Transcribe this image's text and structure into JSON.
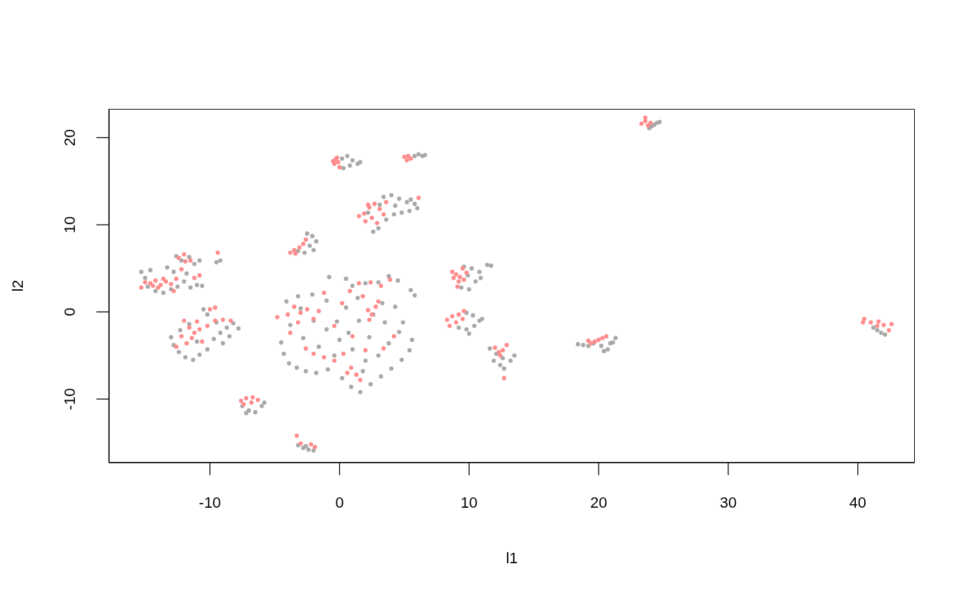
{
  "chart_data": {
    "type": "scatter",
    "xlabel": "l1",
    "ylabel": "l2",
    "xlim": [
      -17.8,
      44.4
    ],
    "ylim": [
      -17.3,
      23.3
    ],
    "xticks": [
      -10,
      0,
      10,
      20,
      30,
      40
    ],
    "yticks": [
      -10,
      0,
      10,
      20
    ],
    "marker": "circle",
    "series": [
      {
        "color": "#a8a8a8",
        "x": [
          -15.3,
          -15.0,
          -14.6,
          -14.2,
          -13.6,
          -13.0,
          -12.5,
          -12.0,
          -11.5,
          -11.0,
          -12.8,
          -13.3,
          -12.2,
          -11.6,
          -11.2,
          -10.8,
          -12.6,
          -14.8,
          -11.8,
          -10.6,
          -9.5,
          -9.2,
          -12.8,
          -12.4,
          -11.9,
          -11.3,
          -10.8,
          -10.2,
          -9.7,
          -9.2,
          -8.7,
          -8.2,
          -7.8,
          -9.5,
          -10.5,
          -10.2,
          -11.6,
          -12.3,
          -13.0,
          -9.0,
          -11.0,
          -8.5,
          -7.5,
          -7.0,
          -6.5,
          -6.0,
          -5.8,
          -7.2,
          -3.2,
          -2.8,
          -2.4,
          -2.0,
          -2.6,
          -2.5,
          -2.1,
          -1.8,
          -2.3,
          -2.0,
          -2.7,
          -3.2,
          -4.5,
          -4.3,
          -3.9,
          -3.3,
          -2.6,
          -1.8,
          -0.9,
          0.2,
          0.9,
          1.6,
          2.4,
          3.2,
          4.0,
          4.8,
          5.4,
          5.6,
          4.6,
          3.8,
          3.0,
          2.0,
          1.0,
          0.0,
          -1.0,
          -2.0,
          -3.0,
          -3.8,
          -4.1,
          -3.2,
          -2.1,
          -1.0,
          0.5,
          1.5,
          3.5,
          4.3,
          3.3,
          1.4,
          0.7,
          -0.4,
          -1.6,
          -2.8,
          2.3,
          4.9,
          5.8,
          5.5,
          4.5,
          3.8,
          3.0,
          2.0,
          1.0,
          0.5,
          -0.8,
          2.6,
          1.8,
          -0.2,
          0.2,
          0.6,
          1.0,
          1.4,
          0.8,
          1.6,
          0.3,
          5.8,
          6.1,
          6.4,
          6.6,
          3.4,
          4.0,
          4.6,
          5.2,
          5.8,
          6.0,
          5.4,
          4.8,
          4.2,
          3.6,
          3.0,
          2.6,
          4.3,
          3.1,
          5.5,
          2.2,
          9.6,
          10.2,
          10.8,
          11.4,
          11.7,
          10.5,
          10.0,
          9.4,
          10.9,
          9.9,
          9.8,
          10.3,
          10.8,
          10.4,
          9.8,
          10.0,
          9.2,
          11.0,
          11.6,
          12.1,
          12.6,
          13.2,
          12.4,
          12.7,
          13.5,
          11.9,
          18.4,
          18.8,
          19.2,
          19.6,
          20.2,
          20.7,
          21.1,
          21.3,
          20.9,
          20.4,
          23.9,
          24.1,
          24.3,
          24.5,
          24.7,
          41.2,
          41.5,
          41.8,
          42.1
        ],
        "values": [
          4.6,
          3.9,
          4.8,
          2.4,
          2.2,
          2.6,
          2.9,
          3.5,
          2.8,
          3.1,
          4.6,
          5.1,
          5.9,
          6.3,
          5.5,
          5.9,
          6.4,
          2.9,
          4.4,
          3.0,
          5.7,
          5.9,
          -3.8,
          -4.6,
          -5.2,
          -5.5,
          -4.9,
          -4.3,
          -3.1,
          -2.4,
          -1.8,
          -1.3,
          -1.9,
          -1.2,
          0.3,
          -0.3,
          -1.4,
          -2.1,
          -2.9,
          -3.6,
          -3.4,
          -2.8,
          -10.8,
          -11.3,
          -11.5,
          -10.8,
          -10.4,
          -11.6,
          -15.3,
          -15.6,
          -15.8,
          -15.9,
          -15.4,
          9.0,
          8.7,
          8.1,
          7.6,
          7.1,
          6.8,
          7.0,
          -3.5,
          -4.8,
          -5.9,
          -6.4,
          -6.8,
          -7.0,
          -6.6,
          -7.6,
          -8.6,
          -9.2,
          -8.3,
          -7.4,
          -6.5,
          -5.5,
          -4.4,
          -3.2,
          -2.3,
          -3.6,
          -5.0,
          -5.6,
          -4.3,
          -3.2,
          -2.0,
          -1.0,
          0.4,
          -1.5,
          1.2,
          1.8,
          2.0,
          1.3,
          0.5,
          -1.0,
          -1.2,
          0.6,
          1.0,
          1.6,
          -2.4,
          -5.0,
          -4.0,
          -3.0,
          -2.9,
          -1.2,
          1.9,
          2.5,
          3.6,
          4.1,
          3.4,
          3.3,
          3.0,
          3.8,
          4.0,
          -0.3,
          -6.8,
          -1.1,
          17.6,
          17.9,
          17.4,
          17.0,
          16.8,
          17.2,
          16.5,
          17.9,
          18.1,
          17.9,
          18.0,
          13.2,
          13.4,
          13.0,
          12.6,
          12.4,
          11.9,
          11.6,
          11.4,
          11.2,
          10.6,
          9.6,
          9.2,
          12.2,
          12.3,
          12.9,
          11.4,
          5.2,
          5.0,
          4.6,
          5.4,
          5.3,
          3.5,
          2.6,
          2.8,
          3.9,
          4.2,
          -0.1,
          -0.4,
          -1.0,
          -1.6,
          -2.0,
          -2.5,
          -1.8,
          -0.8,
          -4.2,
          -4.8,
          -5.3,
          -5.6,
          -6.1,
          -6.5,
          -5.0,
          -5.6,
          -3.7,
          -3.8,
          -3.9,
          -3.6,
          -3.9,
          -4.3,
          -3.5,
          -3.0,
          -3.6,
          -4.5,
          21.1,
          21.3,
          21.5,
          21.7,
          21.8,
          -1.8,
          -2.1,
          -2.4,
          -2.6
        ]
      },
      {
        "color": "#ff8c8c",
        "x": [
          -14.6,
          -14.2,
          -13.8,
          -13.4,
          -14.0,
          -14.4,
          -13.6,
          -15.0,
          -13.0,
          -12.6,
          -12.2,
          -11.9,
          -12.4,
          -11.5,
          -12.0,
          -10.8,
          -11.2,
          -15.3,
          -12.8,
          -9.4,
          -12.0,
          -11.6,
          -11.2,
          -10.8,
          -11.4,
          -10.6,
          -12.2,
          -10.2,
          -11.0,
          -9.6,
          -9.0,
          -8.4,
          -10.0,
          -9.6,
          -11.8,
          -12.6,
          -7.6,
          -7.2,
          -6.7,
          -6.3,
          -7.4,
          -6.8,
          -3.3,
          -3.0,
          -2.2,
          -1.9,
          -3.8,
          -3.5,
          -3.1,
          -2.8,
          -2.6,
          -3.4,
          -4.8,
          -3.5,
          -3.0,
          -2.5,
          -2.0,
          -1.6,
          -3.2,
          -2.6,
          -2.0,
          -1.2,
          -0.4,
          0.3,
          0.9,
          1.3,
          1.6,
          0.6,
          2.2,
          2.5,
          2.8,
          2.3,
          3.0,
          1.5,
          2.4,
          3.2,
          0.8,
          0.2,
          -0.4,
          1.0,
          2.0,
          3.4,
          -1.2,
          -4.0,
          4.2,
          -3.8,
          1.8,
          3.9,
          -0.5,
          -0.3,
          -0.1,
          -0.4,
          0.0,
          -0.2,
          5.0,
          5.3,
          5.5,
          5.2,
          1.5,
          1.9,
          2.3,
          2.7,
          3.1,
          2.5,
          2.0,
          2.9,
          3.4,
          3.6,
          2.2,
          6.1,
          8.7,
          9.0,
          9.3,
          9.6,
          9.2,
          9.8,
          8.8,
          9.5,
          9.1,
          8.3,
          8.7,
          9.2,
          9.6,
          9.0,
          8.5,
          9.5,
          12.0,
          12.3,
          12.6,
          12.4,
          12.9,
          12.7,
          19.4,
          19.7,
          20.0,
          20.3,
          20.6,
          19.2,
          23.3,
          23.6,
          23.8,
          24.0,
          23.6,
          40.4,
          40.5,
          41.0,
          41.6,
          41.5,
          42.0,
          42.4,
          42.6
        ],
        "values": [
          3.3,
          3.6,
          3.1,
          3.5,
          2.8,
          3.0,
          3.8,
          3.4,
          3.2,
          3.8,
          4.9,
          5.8,
          6.2,
          5.9,
          6.6,
          4.2,
          3.9,
          2.8,
          2.4,
          6.8,
          -1.0,
          -1.8,
          -2.4,
          -2.0,
          -3.0,
          -3.4,
          -2.8,
          -1.6,
          -1.1,
          -1.0,
          -0.9,
          -1.0,
          0.3,
          0.5,
          -3.6,
          -4.0,
          -10.2,
          -9.9,
          -9.8,
          -10.1,
          -10.6,
          -10.4,
          -14.2,
          -15.1,
          -15.2,
          -15.5,
          6.8,
          7.1,
          7.4,
          7.8,
          8.3,
          6.7,
          -0.6,
          0.6,
          -0.1,
          0.3,
          -0.8,
          0.1,
          -1.2,
          -4.2,
          -4.8,
          -5.2,
          -5.6,
          -4.8,
          -6.4,
          -7.2,
          -7.8,
          -7.0,
          0.2,
          -0.3,
          0.6,
          -0.9,
          1.2,
          3.3,
          3.4,
          3.0,
          2.4,
          1.0,
          -1.6,
          -2.8,
          -4.4,
          -4.2,
          2.2,
          -0.3,
          -2.8,
          -2.4,
          1.8,
          3.7,
          17.3,
          17.5,
          17.2,
          17.0,
          16.6,
          17.7,
          17.8,
          17.9,
          17.6,
          17.4,
          11.0,
          11.3,
          12.0,
          12.4,
          11.8,
          10.8,
          10.4,
          10.2,
          11.2,
          12.6,
          12.3,
          13.1,
          4.6,
          4.3,
          4.0,
          3.7,
          3.5,
          4.5,
          3.9,
          5.0,
          2.9,
          -0.9,
          -0.5,
          -0.3,
          0.1,
          -1.2,
          -1.6,
          -0.8,
          -4.1,
          -4.6,
          -4.4,
          -5.0,
          -3.8,
          -7.6,
          -3.6,
          -3.4,
          -3.2,
          -3.0,
          -2.8,
          -3.3,
          21.6,
          21.9,
          21.4,
          21.7,
          22.3,
          -1.2,
          -0.8,
          -1.2,
          -1.1,
          -1.6,
          -1.5,
          -2.1,
          -1.4
        ]
      }
    ]
  }
}
